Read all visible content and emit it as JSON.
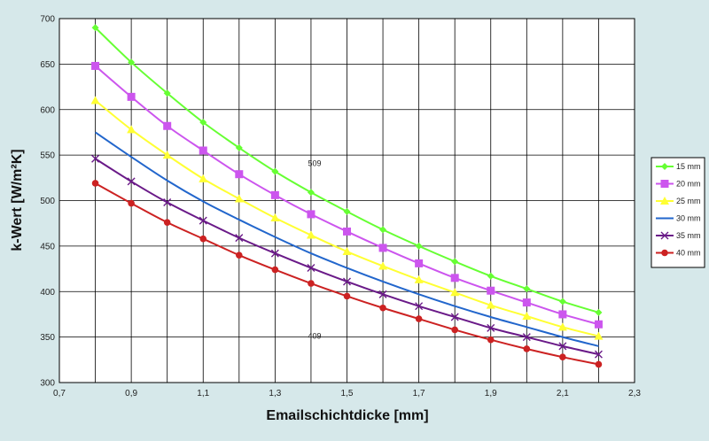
{
  "chart_data": {
    "type": "line",
    "title": "",
    "xlabel": "Emailschichtdicke [mm]",
    "ylabel": "k-Wert [W/m²K]",
    "xlim": [
      0.7,
      2.3
    ],
    "ylim": [
      300,
      700
    ],
    "x_ticks": [
      "0,7",
      "0,9",
      "1,1",
      "1,3",
      "1,5",
      "1,7",
      "1,9",
      "2,1",
      "2,3"
    ],
    "y_ticks": [
      "300",
      "350",
      "400",
      "450",
      "500",
      "550",
      "600",
      "650",
      "700"
    ],
    "grid": true,
    "legend_position": "right",
    "x": [
      0.8,
      0.9,
      1.0,
      1.1,
      1.2,
      1.3,
      1.4,
      1.5,
      1.6,
      1.7,
      1.8,
      1.9,
      2.0,
      2.1,
      2.2
    ],
    "series": [
      {
        "name": "15 mm",
        "color": "#66ff33",
        "marker": "diamond",
        "values": [
          690,
          652,
          618,
          586,
          558,
          532,
          509,
          488,
          468,
          450,
          433,
          417,
          403,
          389,
          377
        ]
      },
      {
        "name": "20 mm",
        "color": "#cc55ee",
        "marker": "square",
        "values": [
          648,
          614,
          582,
          555,
          529,
          506,
          485,
          466,
          448,
          431,
          415,
          401,
          388,
          375,
          364
        ]
      },
      {
        "name": "25 mm",
        "color": "#ffff33",
        "marker": "triangle",
        "values": [
          610,
          578,
          550,
          524,
          502,
          481,
          462,
          444,
          428,
          413,
          399,
          385,
          373,
          361,
          351
        ]
      },
      {
        "name": "30 mm",
        "color": "#2266cc",
        "marker": "none",
        "values": [
          575,
          548,
          522,
          499,
          479,
          460,
          442,
          426,
          411,
          397,
          384,
          372,
          361,
          350,
          340
        ]
      },
      {
        "name": "35 mm",
        "color": "#6a1a88",
        "marker": "x",
        "values": [
          546,
          521,
          498,
          478,
          459,
          442,
          426,
          411,
          397,
          384,
          372,
          360,
          350,
          340,
          331
        ]
      },
      {
        "name": "40 mm",
        "color": "#cc2222",
        "marker": "circle",
        "values": [
          519,
          497,
          476,
          458,
          440,
          424,
          409,
          395,
          382,
          370,
          358,
          347,
          337,
          328,
          320
        ]
      }
    ],
    "annotations": [
      {
        "text": "509",
        "x": 1.41,
        "y": 538
      },
      {
        "text": "409",
        "x": 1.41,
        "y": 348
      }
    ]
  }
}
